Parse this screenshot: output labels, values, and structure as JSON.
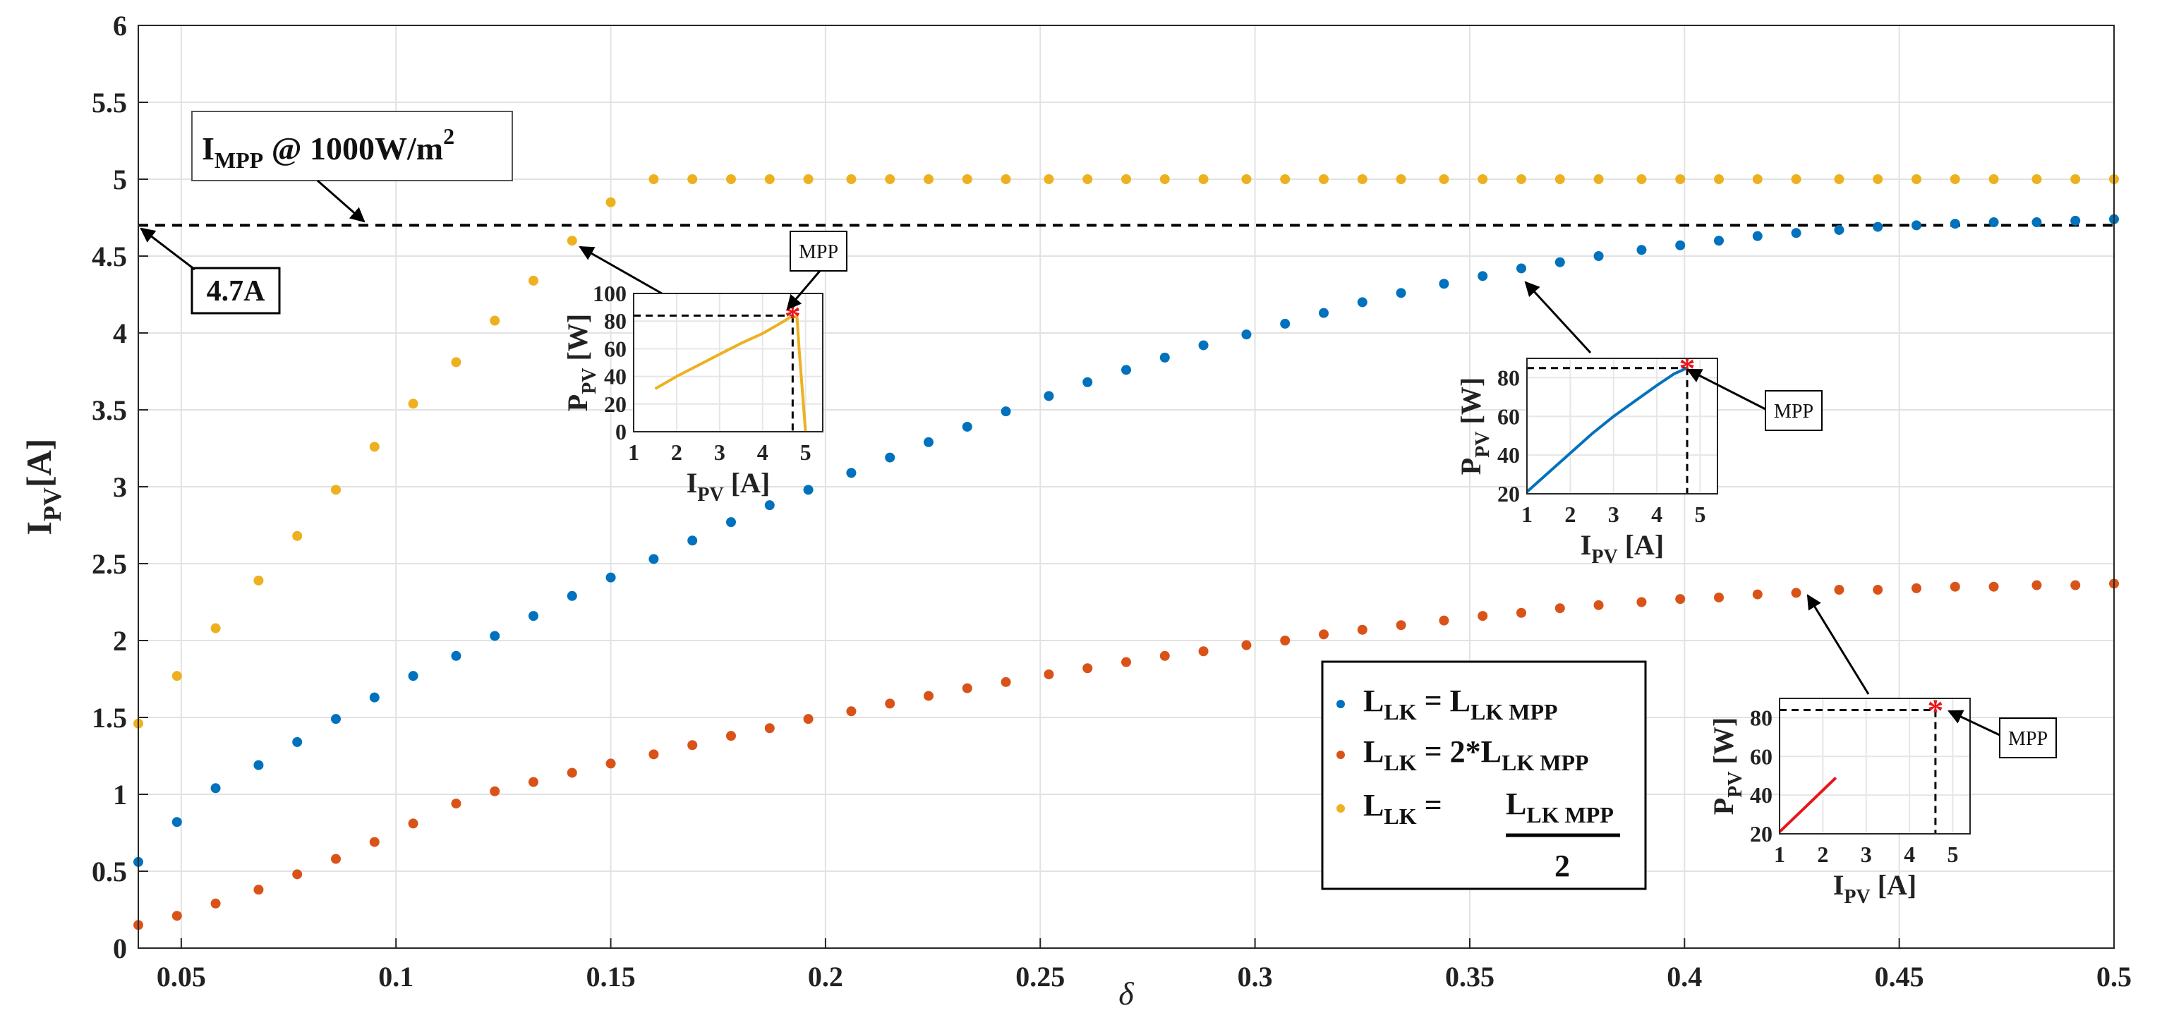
{
  "chart_data": {
    "type": "scatter",
    "xlabel": "δ",
    "ylabel": "I",
    "ylabel_sub": "PV",
    "ylabel_unit": "[A]",
    "xlim": [
      0.04,
      0.5
    ],
    "ylim": [
      0,
      6
    ],
    "grid": true,
    "x_ticks": [
      0.05,
      0.1,
      0.15,
      0.2,
      0.25,
      0.3,
      0.35,
      0.4,
      0.45,
      0.5
    ],
    "y_ticks": [
      0,
      0.5,
      1,
      1.5,
      2,
      2.5,
      3,
      3.5,
      4,
      4.5,
      5,
      5.5,
      6
    ],
    "legend_position": "bottom-center-right",
    "series": [
      {
        "name": "L_LK = L_LK MPP",
        "color": "#0072BD",
        "x": [
          0.04,
          0.049,
          0.058,
          0.068,
          0.077,
          0.086,
          0.095,
          0.104,
          0.114,
          0.123,
          0.132,
          0.141,
          0.15,
          0.16,
          0.169,
          0.178,
          0.187,
          0.196,
          0.206,
          0.215,
          0.224,
          0.233,
          0.242,
          0.252,
          0.261,
          0.27,
          0.279,
          0.288,
          0.298,
          0.307,
          0.316,
          0.325,
          0.334,
          0.344,
          0.353,
          0.362,
          0.371,
          0.38,
          0.39,
          0.399,
          0.408,
          0.417,
          0.426,
          0.436,
          0.445,
          0.454,
          0.463,
          0.472,
          0.482,
          0.491,
          0.5
        ],
        "y": [
          0.56,
          0.82,
          1.04,
          1.19,
          1.34,
          1.49,
          1.63,
          1.77,
          1.9,
          2.03,
          2.16,
          2.29,
          2.41,
          2.53,
          2.65,
          2.77,
          2.88,
          2.98,
          3.09,
          3.19,
          3.29,
          3.39,
          3.49,
          3.59,
          3.68,
          3.76,
          3.84,
          3.92,
          3.99,
          4.06,
          4.13,
          4.2,
          4.26,
          4.32,
          4.37,
          4.42,
          4.46,
          4.5,
          4.54,
          4.57,
          4.6,
          4.63,
          4.65,
          4.67,
          4.69,
          4.7,
          4.71,
          4.72,
          4.72,
          4.73,
          4.74
        ]
      },
      {
        "name": "L_LK = 2*L_LK MPP",
        "color": "#D95319",
        "x": [
          0.04,
          0.049,
          0.058,
          0.068,
          0.077,
          0.086,
          0.095,
          0.104,
          0.114,
          0.123,
          0.132,
          0.141,
          0.15,
          0.16,
          0.169,
          0.178,
          0.187,
          0.196,
          0.206,
          0.215,
          0.224,
          0.233,
          0.242,
          0.252,
          0.261,
          0.27,
          0.279,
          0.288,
          0.298,
          0.307,
          0.316,
          0.325,
          0.334,
          0.344,
          0.353,
          0.362,
          0.371,
          0.38,
          0.39,
          0.399,
          0.408,
          0.417,
          0.426,
          0.436,
          0.445,
          0.454,
          0.463,
          0.472,
          0.482,
          0.491,
          0.5
        ],
        "y": [
          0.15,
          0.21,
          0.29,
          0.38,
          0.48,
          0.58,
          0.69,
          0.81,
          0.94,
          1.02,
          1.08,
          1.14,
          1.2,
          1.26,
          1.32,
          1.38,
          1.43,
          1.49,
          1.54,
          1.59,
          1.64,
          1.69,
          1.73,
          1.78,
          1.82,
          1.86,
          1.9,
          1.93,
          1.97,
          2.0,
          2.04,
          2.07,
          2.1,
          2.13,
          2.16,
          2.18,
          2.21,
          2.23,
          2.25,
          2.27,
          2.28,
          2.3,
          2.31,
          2.33,
          2.33,
          2.34,
          2.35,
          2.35,
          2.36,
          2.36,
          2.37
        ]
      },
      {
        "name": "L_LK = L_LK MPP / 2",
        "color": "#EDB120",
        "x": [
          0.04,
          0.049,
          0.058,
          0.068,
          0.077,
          0.086,
          0.095,
          0.104,
          0.114,
          0.123,
          0.132,
          0.141,
          0.15,
          0.16,
          0.169,
          0.178,
          0.187,
          0.196,
          0.206,
          0.215,
          0.224,
          0.233,
          0.242,
          0.252,
          0.261,
          0.27,
          0.279,
          0.288,
          0.298,
          0.307,
          0.316,
          0.325,
          0.334,
          0.344,
          0.353,
          0.362,
          0.371,
          0.38,
          0.39,
          0.399,
          0.408,
          0.417,
          0.426,
          0.436,
          0.445,
          0.454,
          0.463,
          0.472,
          0.482,
          0.491,
          0.5
        ],
        "y": [
          1.46,
          1.77,
          2.08,
          2.39,
          2.68,
          2.98,
          3.26,
          3.54,
          3.81,
          4.08,
          4.34,
          4.6,
          4.85,
          5.0,
          5.0,
          5.0,
          5.0,
          5.0,
          5.0,
          5.0,
          5.0,
          5.0,
          5.0,
          5.0,
          5.0,
          5.0,
          5.0,
          5.0,
          5.0,
          5.0,
          5.0,
          5.0,
          5.0,
          5.0,
          5.0,
          5.0,
          5.0,
          5.0,
          5.0,
          5.0,
          5.0,
          5.0,
          5.0,
          5.0,
          5.0,
          5.0,
          5.0,
          5.0,
          5.0,
          5.0,
          5.0
        ]
      }
    ],
    "reference_line": {
      "y": 4.7,
      "style": "dashed",
      "color": "#000000"
    },
    "annotations": {
      "impp_label": "I",
      "impp_sub": "MPP",
      "impp_rest": " @ 1000W/m",
      "impp_sup": "2",
      "value_label": "4.7A",
      "mpp_label": "MPP"
    },
    "legend": [
      {
        "main": "L",
        "sub": "LK",
        "eq": " = L",
        "sub2": "LK MPP",
        "suffix": ""
      },
      {
        "main": "L",
        "sub": "LK",
        "eq": " = 2*L",
        "sub2": "LK MPP",
        "suffix": ""
      },
      {
        "main": "L",
        "sub": "LK",
        "eq": " = ",
        "num_main": "L",
        "num_sub": "LK MPP",
        "den": "2"
      }
    ],
    "insets": [
      {
        "id": "inset-1",
        "color": "#EDB120",
        "xlim": [
          1,
          5.4
        ],
        "ylim": [
          0,
          100
        ],
        "x_ticks": [
          1,
          2,
          3,
          4,
          5
        ],
        "y_ticks": [
          0,
          20,
          40,
          60,
          80,
          100
        ],
        "curve_x": [
          1.5,
          2,
          2.5,
          3,
          3.5,
          4,
          4.5,
          4.65,
          4.8,
          4.85,
          5.0
        ],
        "curve_y": [
          31,
          40,
          48,
          56,
          64,
          71,
          80,
          83,
          83,
          60,
          0
        ],
        "mpp": [
          4.7,
          84
        ],
        "xlabel": "I",
        "xlabel_sub": "PV",
        "xlabel_unit": " [A]",
        "ylabel": "P",
        "ylabel_sub": "PV",
        "ylabel_unit": " [W]"
      },
      {
        "id": "inset-2",
        "color": "#0072BD",
        "xlim": [
          1,
          5.4
        ],
        "ylim": [
          20,
          90
        ],
        "x_ticks": [
          1,
          2,
          3,
          4,
          5
        ],
        "y_ticks": [
          20,
          40,
          60,
          80
        ],
        "curve_x": [
          1,
          1.5,
          2,
          2.5,
          3,
          3.5,
          4,
          4.4,
          4.7
        ],
        "curve_y": [
          21,
          31,
          41,
          51,
          60,
          68,
          76,
          82,
          85
        ],
        "mpp": [
          4.7,
          85
        ],
        "xlabel": "I",
        "xlabel_sub": "PV",
        "xlabel_unit": " [A]",
        "ylabel": "P",
        "ylabel_sub": "PV",
        "ylabel_unit": " [W]"
      },
      {
        "id": "inset-3",
        "color": "#E8151B",
        "xlim": [
          1,
          5.4
        ],
        "ylim": [
          20,
          90
        ],
        "x_ticks": [
          1,
          2,
          3,
          4,
          5
        ],
        "y_ticks": [
          20,
          40,
          60,
          80
        ],
        "curve_x": [
          1,
          2.3
        ],
        "curve_y": [
          21,
          49
        ],
        "mpp": [
          4.6,
          84
        ],
        "xlabel": "I",
        "xlabel_sub": "PV",
        "xlabel_unit": " [A]",
        "ylabel": "P",
        "ylabel_sub": "PV",
        "ylabel_unit": " [W]"
      }
    ]
  }
}
